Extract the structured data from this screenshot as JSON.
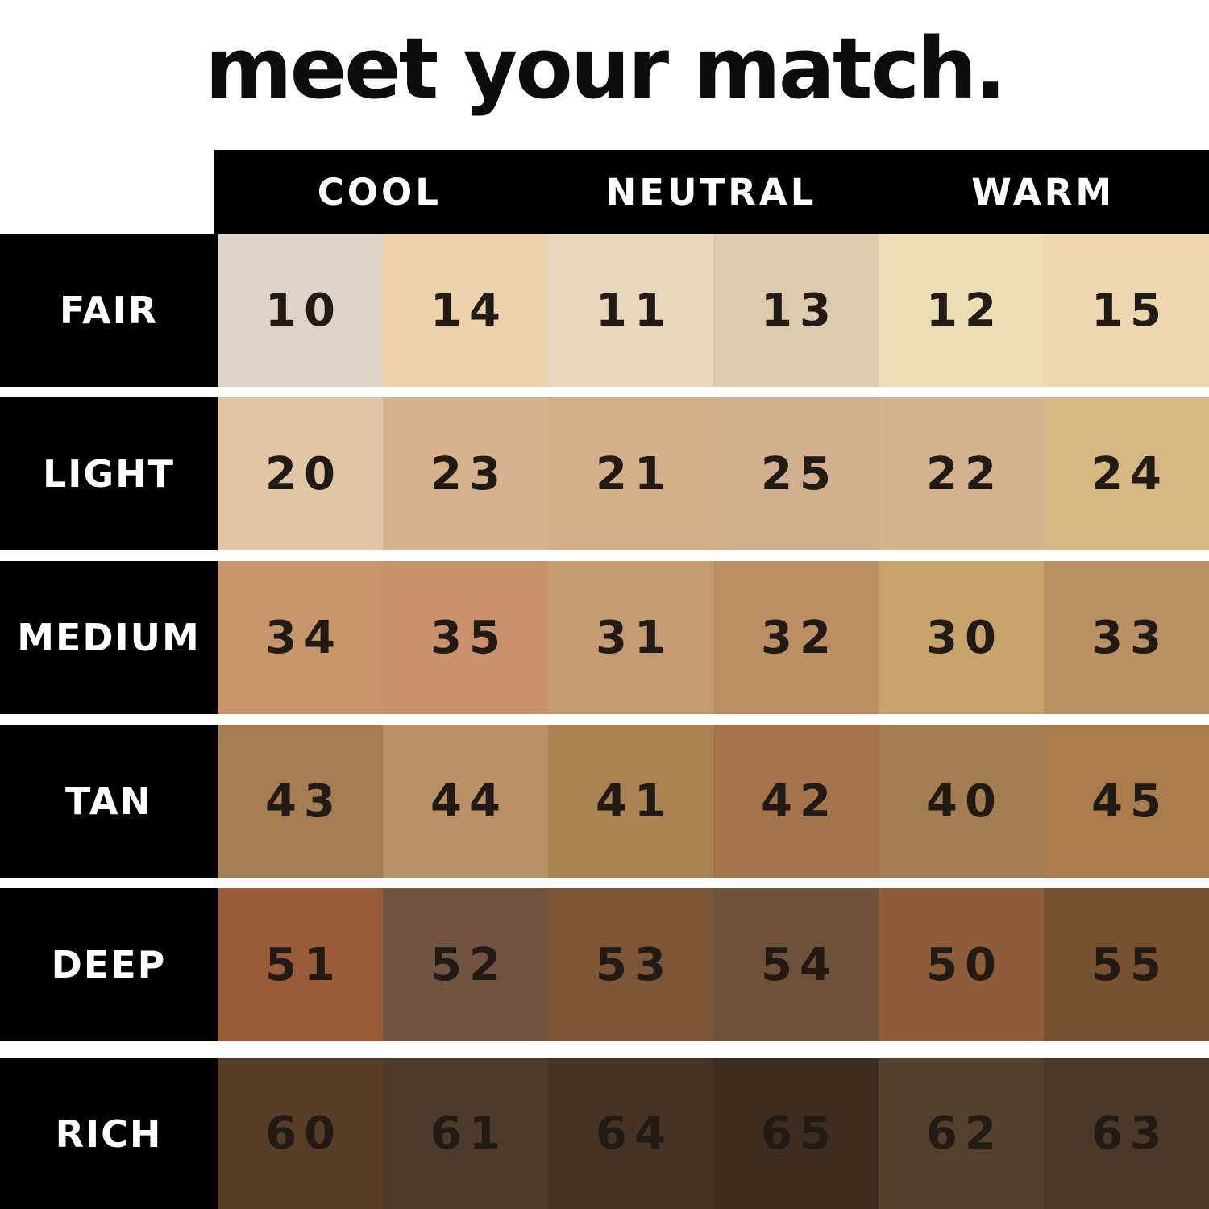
{
  "title": "meet your match.",
  "colors": {
    "background": "#ffffff",
    "panel": "#000000",
    "header_text": "#ffffff",
    "row_label_text": "#ffffff",
    "number_text": "#221b15",
    "title_text": "#0d0d0d"
  },
  "table": {
    "column_headers": [
      "COOL",
      "NEUTRAL",
      "WARM"
    ],
    "rows": [
      {
        "label": "FAIR",
        "shades": [
          {
            "number": "10",
            "color": "#ded3c6"
          },
          {
            "number": "14",
            "color": "#ecd2ab"
          },
          {
            "number": "11",
            "color": "#e8d7ba"
          },
          {
            "number": "13",
            "color": "#ddc9ab"
          },
          {
            "number": "12",
            "color": "#eedcb4"
          },
          {
            "number": "15",
            "color": "#ecd7ae"
          }
        ]
      },
      {
        "label": "LIGHT",
        "shades": [
          {
            "number": "20",
            "color": "#e0c6a4"
          },
          {
            "number": "23",
            "color": "#d5b28b"
          },
          {
            "number": "21",
            "color": "#d3b087"
          },
          {
            "number": "25",
            "color": "#d2af8e"
          },
          {
            "number": "22",
            "color": "#d4b28d"
          },
          {
            "number": "24",
            "color": "#d6b682"
          }
        ]
      },
      {
        "label": "MEDIUM",
        "shades": [
          {
            "number": "34",
            "color": "#c6966d"
          },
          {
            "number": "35",
            "color": "#c9916c"
          },
          {
            "number": "31",
            "color": "#c49a72"
          },
          {
            "number": "32",
            "color": "#bc9063"
          },
          {
            "number": "30",
            "color": "#c8a26b"
          },
          {
            "number": "33",
            "color": "#ba9162"
          }
        ]
      },
      {
        "label": "TAN",
        "shades": [
          {
            "number": "43",
            "color": "#a67c52"
          },
          {
            "number": "44",
            "color": "#bc9066"
          },
          {
            "number": "41",
            "color": "#ab8251"
          },
          {
            "number": "42",
            "color": "#a6744c"
          },
          {
            "number": "40",
            "color": "#a37d52"
          },
          {
            "number": "45",
            "color": "#aa7c4c"
          }
        ]
      },
      {
        "label": "DEEP",
        "shades": [
          {
            "number": "51",
            "color": "#995b38"
          },
          {
            "number": "52",
            "color": "#705441"
          },
          {
            "number": "53",
            "color": "#7d5637"
          },
          {
            "number": "54",
            "color": "#6d5139"
          },
          {
            "number": "50",
            "color": "#8d5c38"
          },
          {
            "number": "55",
            "color": "#765231"
          }
        ]
      },
      {
        "label": "RICH",
        "shades": [
          {
            "number": "60",
            "color": "#573c26"
          },
          {
            "number": "61",
            "color": "#4f3a29"
          },
          {
            "number": "64",
            "color": "#473323"
          },
          {
            "number": "65",
            "color": "#3d2d20"
          },
          {
            "number": "62",
            "color": "#54402d"
          },
          {
            "number": "63",
            "color": "#4c3826"
          }
        ]
      }
    ]
  },
  "chart_data": {
    "type": "table",
    "title": "meet your match.",
    "column_groups": [
      "COOL",
      "NEUTRAL",
      "WARM"
    ],
    "columns_per_group": 2,
    "row_labels": [
      "FAIR",
      "LIGHT",
      "MEDIUM",
      "TAN",
      "DEEP",
      "RICH"
    ],
    "shade_numbers": [
      [
        10,
        14,
        11,
        13,
        12,
        15
      ],
      [
        20,
        23,
        21,
        25,
        22,
        24
      ],
      [
        34,
        35,
        31,
        32,
        30,
        33
      ],
      [
        43,
        44,
        41,
        42,
        40,
        45
      ],
      [
        51,
        52,
        53,
        54,
        50,
        55
      ],
      [
        60,
        61,
        64,
        65,
        62,
        63
      ]
    ],
    "shade_colors": [
      [
        "#ded3c6",
        "#ecd2ab",
        "#e8d7ba",
        "#ddc9ab",
        "#eedcb4",
        "#ecd7ae"
      ],
      [
        "#e0c6a4",
        "#d5b28b",
        "#d3b087",
        "#d2af8e",
        "#d4b28d",
        "#d6b682"
      ],
      [
        "#c6966d",
        "#c9916c",
        "#c49a72",
        "#bc9063",
        "#c8a26b",
        "#ba9162"
      ],
      [
        "#a67c52",
        "#bc9066",
        "#ab8251",
        "#a6744c",
        "#a37d52",
        "#aa7c4c"
      ],
      [
        "#995b38",
        "#705441",
        "#7d5637",
        "#6d5139",
        "#8d5c38",
        "#765231"
      ],
      [
        "#573c26",
        "#4f3a29",
        "#473323",
        "#3d2d20",
        "#54402d",
        "#4c3826"
      ]
    ],
    "legend_position": "none",
    "grid": false
  }
}
